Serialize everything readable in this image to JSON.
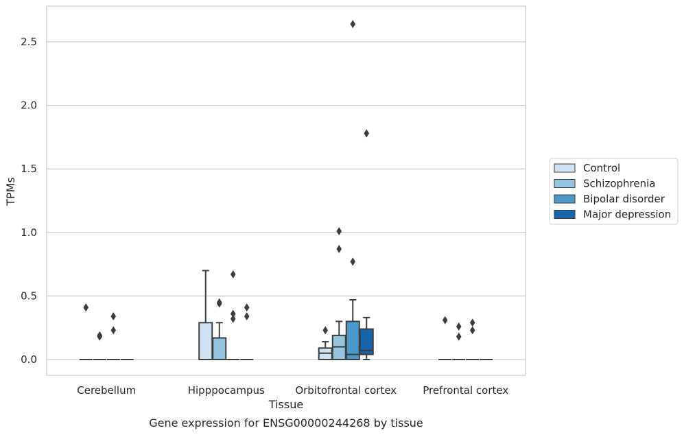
{
  "chart_data": {
    "type": "box",
    "title": "",
    "caption": "Gene expression for ENSG00000244268 by tissue",
    "xlabel": "Tissue",
    "ylabel": "TPMs",
    "ylim": [
      -0.13,
      2.78
    ],
    "yticks": [
      0.0,
      0.5,
      1.0,
      1.5,
      2.0,
      2.5
    ],
    "ytick_labels": [
      "0.0",
      "0.5",
      "1.0",
      "1.5",
      "2.0",
      "2.5"
    ],
    "grid": "horizontal",
    "legend_position": "right",
    "categories": [
      "Cerebellum",
      "Hipppocampus",
      "Orbitofrontal cortex",
      "Prefrontal cortex"
    ],
    "series": [
      {
        "name": "Control",
        "color": "#d0e1f2",
        "boxes": [
          {
            "q1": 0,
            "median": 0,
            "q3": 0,
            "whisker_low": 0,
            "whisker_high": 0,
            "outliers": [
              0.41
            ]
          },
          {
            "q1": 0,
            "median": 0,
            "q3": 0.29,
            "whisker_low": 0,
            "whisker_high": 0.7,
            "outliers": []
          },
          {
            "q1": 0,
            "median": 0.05,
            "q3": 0.09,
            "whisker_low": 0,
            "whisker_high": 0.14,
            "outliers": [
              0.23
            ]
          },
          {
            "q1": 0,
            "median": 0,
            "q3": 0,
            "whisker_low": 0,
            "whisker_high": 0,
            "outliers": [
              0.31
            ]
          }
        ]
      },
      {
        "name": "Schizophrenia",
        "color": "#94c4df",
        "boxes": [
          {
            "q1": 0,
            "median": 0,
            "q3": 0,
            "whisker_low": 0,
            "whisker_high": 0,
            "outliers": [
              0.18,
              0.19
            ]
          },
          {
            "q1": 0,
            "median": 0,
            "q3": 0.17,
            "whisker_low": 0,
            "whisker_high": 0.29,
            "outliers": [
              0.44,
              0.45
            ]
          },
          {
            "q1": 0,
            "median": 0.1,
            "q3": 0.19,
            "whisker_low": 0,
            "whisker_high": 0.3,
            "outliers": [
              0.87,
              1.01
            ]
          },
          {
            "q1": 0,
            "median": 0,
            "q3": 0,
            "whisker_low": 0,
            "whisker_high": 0,
            "outliers": [
              0.26,
              0.18
            ]
          }
        ]
      },
      {
        "name": "Bipolar disorder",
        "color": "#4a98c9",
        "boxes": [
          {
            "q1": 0,
            "median": 0,
            "q3": 0,
            "whisker_low": 0,
            "whisker_high": 0,
            "outliers": [
              0.23,
              0.34
            ]
          },
          {
            "q1": 0,
            "median": 0,
            "q3": 0,
            "whisker_low": 0,
            "whisker_high": 0,
            "outliers": [
              0.32,
              0.36,
              0.67
            ]
          },
          {
            "q1": 0,
            "median": 0.04,
            "q3": 0.3,
            "whisker_low": 0,
            "whisker_high": 0.47,
            "outliers": [
              0.77,
              2.64
            ]
          },
          {
            "q1": 0,
            "median": 0,
            "q3": 0,
            "whisker_low": 0,
            "whisker_high": 0,
            "outliers": [
              0.23,
              0.29
            ]
          }
        ]
      },
      {
        "name": "Major depression",
        "color": "#1764ab",
        "boxes": [
          {
            "q1": 0,
            "median": 0,
            "q3": 0,
            "whisker_low": 0,
            "whisker_high": 0,
            "outliers": []
          },
          {
            "q1": 0,
            "median": 0,
            "q3": 0,
            "whisker_low": 0,
            "whisker_high": 0,
            "outliers": [
              0.34,
              0.41
            ]
          },
          {
            "q1": 0.04,
            "median": 0.07,
            "q3": 0.24,
            "whisker_low": 0,
            "whisker_high": 0.33,
            "outliers": [
              1.78
            ]
          },
          {
            "q1": 0,
            "median": 0,
            "q3": 0,
            "whisker_low": 0,
            "whisker_high": 0,
            "outliers": []
          }
        ]
      }
    ]
  }
}
